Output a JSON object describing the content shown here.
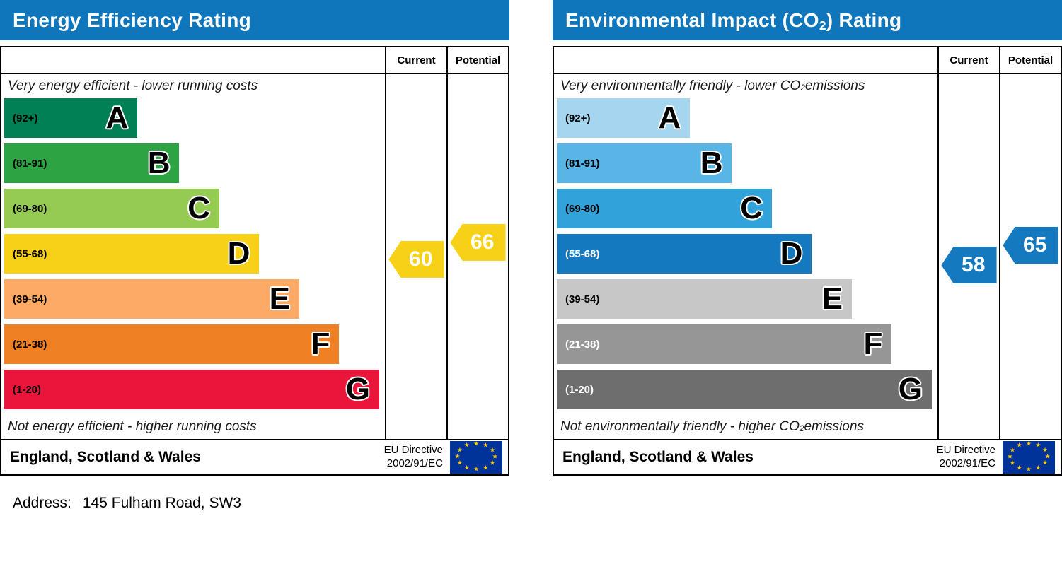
{
  "address": {
    "label": "Address:",
    "value": "145 Fulham Road, SW3"
  },
  "chart_data": [
    {
      "type": "bar",
      "title_pre": "Energy Efficiency Rating",
      "title_sub": "",
      "title_post": "",
      "col_current": "Current",
      "col_potential": "Potential",
      "top_caption_pre": "Very energy efficient - lower running costs",
      "top_caption_sub": "",
      "top_caption_post": "",
      "bottom_caption_pre": "Not energy efficient - higher running costs",
      "bottom_caption_sub": "",
      "bottom_caption_post": "",
      "footer_region": "England, Scotland & Wales",
      "directive_line1": "EU Directive",
      "directive_line2": "2002/91/EC",
      "header_color": "#1076bc",
      "current": {
        "value": 60
      },
      "potential": {
        "value": 66
      },
      "bands": [
        {
          "letter": "A",
          "range": "(92+)",
          "min": 92,
          "max": 100,
          "color": "#008054",
          "width_pct": 35,
          "label_color": "#000000"
        },
        {
          "letter": "B",
          "range": "(81-91)",
          "min": 81,
          "max": 91,
          "color": "#2da343",
          "width_pct": 46,
          "label_color": "#000000"
        },
        {
          "letter": "C",
          "range": "(69-80)",
          "min": 69,
          "max": 80,
          "color": "#95ca53",
          "width_pct": 56.5,
          "label_color": "#000000"
        },
        {
          "letter": "D",
          "range": "(55-68)",
          "min": 55,
          "max": 68,
          "color": "#f7d117",
          "width_pct": 67,
          "label_color": "#000000"
        },
        {
          "letter": "E",
          "range": "(39-54)",
          "min": 39,
          "max": 54,
          "color": "#fcaa65",
          "width_pct": 77.5,
          "label_color": "#000000"
        },
        {
          "letter": "F",
          "range": "(21-38)",
          "min": 21,
          "max": 38,
          "color": "#ef8023",
          "width_pct": 88,
          "label_color": "#000000"
        },
        {
          "letter": "G",
          "range": "(1-20)",
          "min": 1,
          "max": 20,
          "color": "#e9153b",
          "width_pct": 98.5,
          "label_color": "#000000"
        }
      ]
    },
    {
      "type": "bar",
      "title_pre": "Environmental Impact (CO",
      "title_sub": "2",
      "title_post": ") Rating",
      "col_current": "Current",
      "col_potential": "Potential",
      "top_caption_pre": "Very environmentally friendly - lower CO",
      "top_caption_sub": "2",
      "top_caption_post": " emissions",
      "bottom_caption_pre": "Not environmentally friendly - higher CO",
      "bottom_caption_sub": "2",
      "bottom_caption_post": " emissions",
      "footer_region": "England, Scotland & Wales",
      "directive_line1": "EU Directive",
      "directive_line2": "2002/91/EC",
      "header_color": "#1076bc",
      "current": {
        "value": 58
      },
      "potential": {
        "value": 65
      },
      "bands": [
        {
          "letter": "A",
          "range": "(92+)",
          "min": 92,
          "max": 100,
          "color": "#a5d5ef",
          "width_pct": 35,
          "label_color": "#000000"
        },
        {
          "letter": "B",
          "range": "(81-91)",
          "min": 81,
          "max": 91,
          "color": "#58b5e5",
          "width_pct": 46,
          "label_color": "#000000"
        },
        {
          "letter": "C",
          "range": "(69-80)",
          "min": 69,
          "max": 80,
          "color": "#31a2da",
          "width_pct": 56.5,
          "label_color": "#000000"
        },
        {
          "letter": "D",
          "range": "(55-68)",
          "min": 55,
          "max": 68,
          "color": "#1479bf",
          "width_pct": 67,
          "label_color": "#ffffff"
        },
        {
          "letter": "E",
          "range": "(39-54)",
          "min": 39,
          "max": 54,
          "color": "#c7c7c7",
          "width_pct": 77.5,
          "label_color": "#000000"
        },
        {
          "letter": "F",
          "range": "(21-38)",
          "min": 21,
          "max": 38,
          "color": "#969696",
          "width_pct": 88,
          "label_color": "#ffffff"
        },
        {
          "letter": "G",
          "range": "(1-20)",
          "min": 1,
          "max": 20,
          "color": "#6e6e6e",
          "width_pct": 98.5,
          "label_color": "#ffffff"
        }
      ]
    }
  ]
}
